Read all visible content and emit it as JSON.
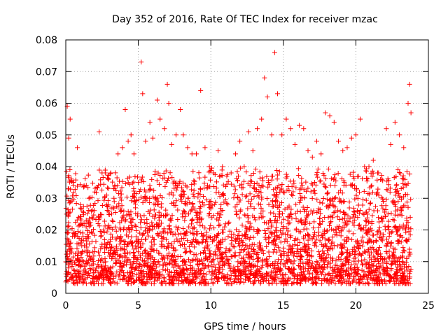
{
  "chart_data": {
    "type": "scatter",
    "title": "Day 352 of 2016, Rate Of TEC Index for receiver mzac",
    "xlabel": "GPS time / hours",
    "ylabel": "ROTI / TECUs",
    "xlim": [
      0,
      25
    ],
    "ylim": [
      0,
      0.08
    ],
    "x_ticks": [
      0,
      5,
      10,
      15,
      20,
      25
    ],
    "x_tick_labels": [
      "0",
      "5",
      "10",
      "15",
      "20",
      "25"
    ],
    "y_ticks": [
      0,
      0.01,
      0.02,
      0.03,
      0.04,
      0.05,
      0.06,
      0.07,
      0.08
    ],
    "y_tick_labels": [
      "0",
      "0.01",
      "0.02",
      "0.03",
      "0.04",
      "0.05",
      "0.06",
      "0.07",
      "0.08"
    ],
    "grid": true,
    "marker": "+",
    "color": "#ff0000",
    "series": [
      {
        "name": "ROTI",
        "x": [
          0.1,
          0.2,
          0.3,
          0.5,
          0.8,
          1.0,
          1.3,
          1.6,
          2.0,
          2.3,
          2.5,
          2.8,
          3.1,
          3.3,
          3.6,
          3.9,
          4.1,
          4.3,
          4.5,
          4.7,
          5.0,
          5.2,
          5.3,
          5.5,
          5.8,
          6.0,
          6.3,
          6.5,
          6.8,
          7.0,
          7.1,
          7.3,
          7.6,
          7.9,
          8.1,
          8.4,
          8.7,
          9.0,
          9.3,
          9.6,
          9.9,
          10.2,
          10.5,
          10.8,
          11.1,
          11.4,
          11.7,
          12.0,
          12.3,
          12.6,
          12.9,
          13.2,
          13.5,
          13.7,
          13.9,
          14.2,
          14.4,
          14.6,
          14.9,
          15.2,
          15.5,
          15.8,
          16.1,
          16.4,
          16.7,
          17.0,
          17.3,
          17.6,
          17.9,
          18.2,
          18.5,
          18.8,
          19.1,
          19.4,
          19.7,
          20.0,
          20.3,
          20.6,
          20.9,
          21.2,
          21.5,
          21.8,
          22.1,
          22.4,
          22.7,
          23.0,
          23.3,
          23.6,
          23.7,
          23.8,
          0.15,
          0.4,
          0.7,
          1.1,
          1.5,
          1.9,
          2.4,
          2.9,
          3.4,
          3.8,
          4.2,
          4.6,
          5.1,
          5.6,
          6.1,
          6.6,
          7.2,
          7.7,
          8.2,
          8.8,
          9.4,
          9.8,
          10.4,
          11.0,
          11.6,
          12.2,
          12.8,
          13.4,
          13.8,
          14.3,
          14.8,
          15.4,
          16.0,
          16.6,
          17.2,
          17.8,
          18.4,
          19.0,
          19.6,
          20.2,
          20.8,
          21.4,
          22.0,
          22.6,
          23.2,
          23.5,
          0.05,
          0.6,
          1.2,
          1.8,
          2.6,
          3.2,
          4.0,
          4.8,
          5.4,
          6.2,
          7.4,
          8.0,
          8.6,
          9.2,
          10.0,
          10.6,
          11.2,
          11.8,
          12.4,
          13.0,
          13.6,
          14.0,
          14.7,
          15.3,
          16.2,
          16.9,
          17.5,
          18.1,
          18.7,
          19.3,
          19.9,
          20.5,
          21.1,
          21.7,
          22.3,
          22.9,
          23.4,
          23.75
        ],
        "y": [
          0.059,
          0.049,
          0.055,
          0.035,
          0.046,
          0.028,
          0.022,
          0.03,
          0.032,
          0.051,
          0.038,
          0.028,
          0.038,
          0.033,
          0.044,
          0.046,
          0.058,
          0.048,
          0.05,
          0.044,
          0.035,
          0.073,
          0.063,
          0.048,
          0.054,
          0.049,
          0.061,
          0.055,
          0.052,
          0.066,
          0.06,
          0.047,
          0.05,
          0.058,
          0.05,
          0.046,
          0.044,
          0.044,
          0.064,
          0.046,
          0.04,
          0.038,
          0.045,
          0.04,
          0.037,
          0.038,
          0.044,
          0.048,
          0.04,
          0.051,
          0.045,
          0.052,
          0.055,
          0.068,
          0.062,
          0.05,
          0.076,
          0.063,
          0.05,
          0.055,
          0.052,
          0.047,
          0.053,
          0.052,
          0.045,
          0.043,
          0.048,
          0.044,
          0.057,
          0.056,
          0.054,
          0.048,
          0.045,
          0.046,
          0.049,
          0.05,
          0.055,
          0.04,
          0.04,
          0.042,
          0.038,
          0.036,
          0.052,
          0.047,
          0.054,
          0.05,
          0.046,
          0.06,
          0.066,
          0.057,
          0.011,
          0.013,
          0.009,
          0.015,
          0.012,
          0.01,
          0.014,
          0.016,
          0.013,
          0.018,
          0.02,
          0.016,
          0.019,
          0.022,
          0.021,
          0.018,
          0.023,
          0.02,
          0.019,
          0.017,
          0.016,
          0.014,
          0.015,
          0.013,
          0.012,
          0.016,
          0.014,
          0.015,
          0.017,
          0.013,
          0.012,
          0.015,
          0.014,
          0.013,
          0.016,
          0.015,
          0.014,
          0.013,
          0.012,
          0.014,
          0.016,
          0.013,
          0.011,
          0.012,
          0.01,
          0.011,
          0.025,
          0.018,
          0.022,
          0.024,
          0.02,
          0.023,
          0.026,
          0.027,
          0.03,
          0.028,
          0.031,
          0.029,
          0.026,
          0.025,
          0.027,
          0.024,
          0.022,
          0.025,
          0.021,
          0.024,
          0.026,
          0.028,
          0.025,
          0.027,
          0.023,
          0.026,
          0.022,
          0.024,
          0.021,
          0.025,
          0.023,
          0.02,
          0.022,
          0.019,
          0.018,
          0.02,
          0.021,
          0.024
        ],
        "density_band": {
          "low": 0.004,
          "mid": 0.015,
          "high": 0.035
        }
      }
    ]
  }
}
